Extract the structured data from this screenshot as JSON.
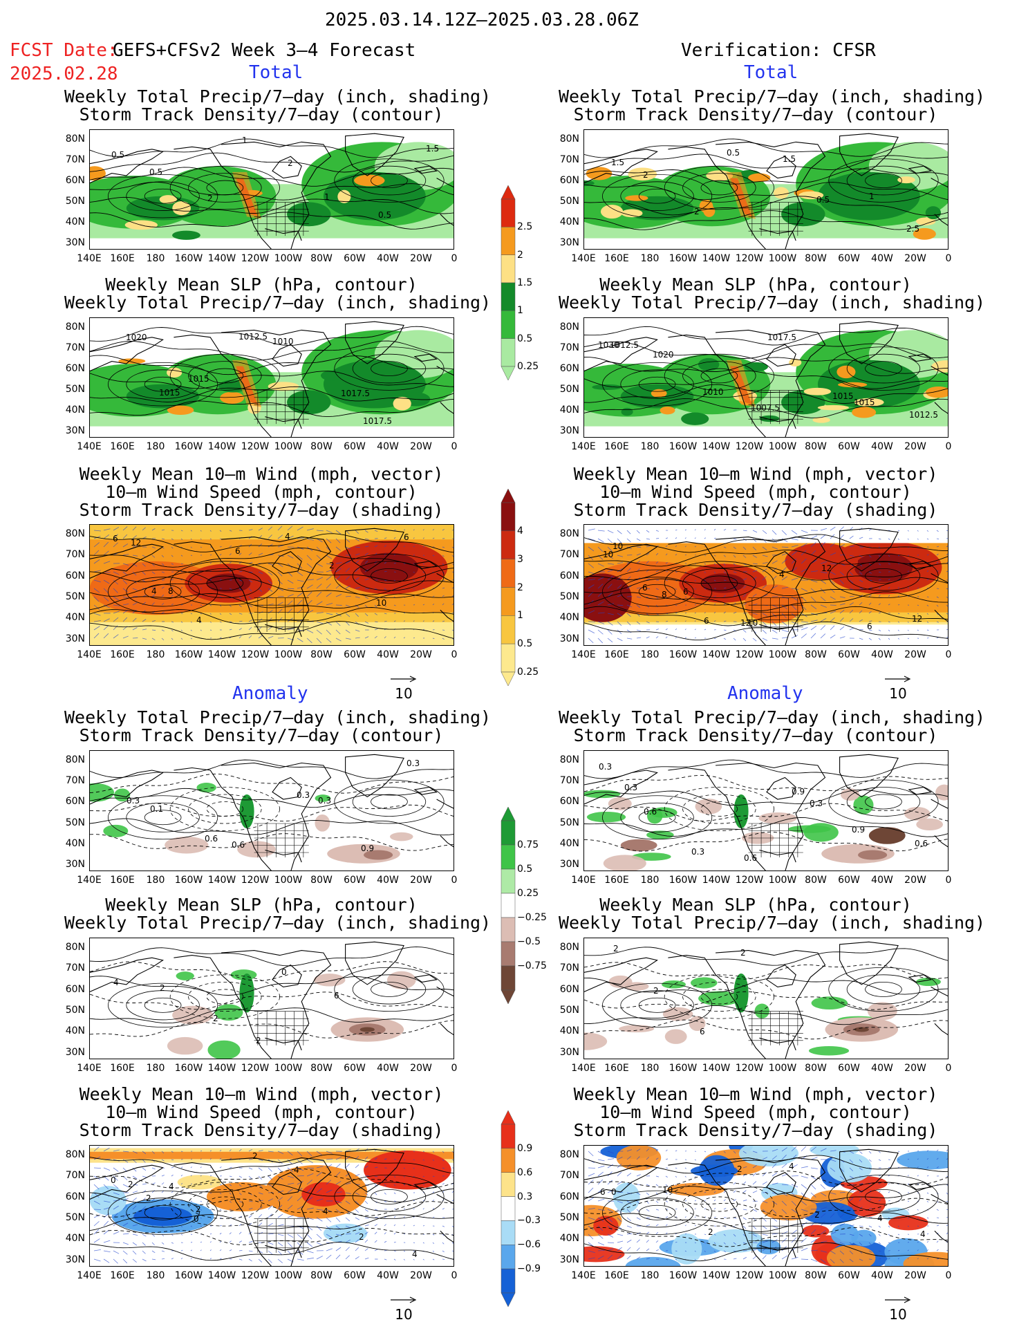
{
  "header": {
    "period": "2025.03.14.12Z–2025.03.28.06Z",
    "fcst_label": "FCST Date:",
    "model": "GEFS+CFSv2 Week 3–4 Forecast",
    "fcst_date": "2025.02.28",
    "verification": "Verification: CFSR"
  },
  "sections": {
    "total": "Total",
    "anomaly": "Anomaly"
  },
  "titles": {
    "precip_storm": [
      "Weekly Total Precip/7–day (inch, shading)",
      "Storm Track Density/7–day (contour)"
    ],
    "slp_precip": [
      "Weekly Mean SLP (hPa, contour)",
      "Weekly Total Precip/7–day (inch, shading)"
    ],
    "wind_storm": [
      "Weekly Mean 10–m Wind (mph, vector)",
      "10–m Wind Speed (mph, contour)",
      "Storm Track Density/7–day (shading)"
    ]
  },
  "axes": {
    "lat": [
      "80N",
      "70N",
      "60N",
      "50N",
      "40N",
      "30N"
    ],
    "lon": [
      "140E",
      "160E",
      "180",
      "160W",
      "140W",
      "120W",
      "100W",
      "80W",
      "60W",
      "40W",
      "20W",
      "0"
    ]
  },
  "vector_ref": "10",
  "colorbars": {
    "precip_total": {
      "labels": [
        "2.5",
        "2",
        "1.5",
        "1",
        "0.5",
        "0.25"
      ],
      "colors": [
        "#dd2a10",
        "#f59a1e",
        "#fde085",
        "#138a2a",
        "#35b93a",
        "#a9eaa1"
      ]
    },
    "storm_total": {
      "labels": [
        "4",
        "3",
        "2",
        "1",
        "0.5",
        "0.25"
      ],
      "colors": [
        "#8a1010",
        "#cc2a10",
        "#ef6a16",
        "#f59a1e",
        "#f8c640",
        "#fde98e"
      ]
    },
    "precip_anom": {
      "labels": [
        "0.75",
        "0.5",
        "0.25",
        "−0.25",
        "−0.5",
        "−0.75"
      ],
      "colors": [
        "#1e9a35",
        "#3fc448",
        "#aeeaa6",
        "#ffffff",
        "#dcbdb4",
        "#a87b70",
        "#6e4636"
      ]
    },
    "storm_anom": {
      "labels": [
        "0.9",
        "0.6",
        "0.3",
        "−0.3",
        "−0.6",
        "−0.9"
      ],
      "colors": [
        "#e7301a",
        "#f5902a",
        "#fde38a",
        "#ffffff",
        "#a9dcf6",
        "#5aa7ec",
        "#1561d6"
      ]
    }
  },
  "panel_values": {
    "r1_left": [
      "0.5",
      "0.5",
      "2",
      "1",
      "2",
      "1",
      "0.5",
      "1.5"
    ],
    "r1_right": [
      "1.5",
      "2",
      "2",
      "0.5",
      "1.5",
      "0.5",
      "1",
      "2.5"
    ],
    "r2_left": [
      "1020",
      "1015",
      "1015",
      "1012.5",
      "1010",
      "1017.5",
      "1017.5"
    ],
    "r2_right": [
      "1030",
      "1020",
      "1010",
      "1007.5",
      "1017.5",
      "1015",
      "1015",
      "1012.5",
      "1012.5"
    ],
    "r3_left": [
      "6",
      "8",
      "4",
      "6",
      "4",
      "2",
      "10",
      "6",
      "12",
      "4"
    ],
    "r3_right": [
      "10",
      "8",
      "6",
      "10",
      "4",
      "12",
      "6",
      "12",
      "10",
      "6",
      "6",
      "12"
    ],
    "r4_left": [
      "0.3",
      "0.1",
      "0.6",
      "0.6",
      "0.3",
      "0.3",
      "0.9",
      "0.3"
    ],
    "r4_right": [
      "0.3",
      "0.6",
      "0.3",
      "0.6",
      "0.9",
      "0.3",
      "0.9",
      "0.6",
      "0.3"
    ],
    "r5_left": [
      "4",
      "2",
      "2",
      "2",
      "0",
      "6"
    ],
    "r5_right": [
      "2",
      "2",
      "6",
      "2"
    ],
    "r6_left": [
      "2",
      "4",
      "0",
      "2",
      "4",
      "4",
      "2",
      "4",
      "0",
      "2",
      "2"
    ],
    "r6_right": [
      "6",
      "10",
      "2",
      "2",
      "4",
      "2",
      "4",
      "4",
      "0"
    ]
  }
}
